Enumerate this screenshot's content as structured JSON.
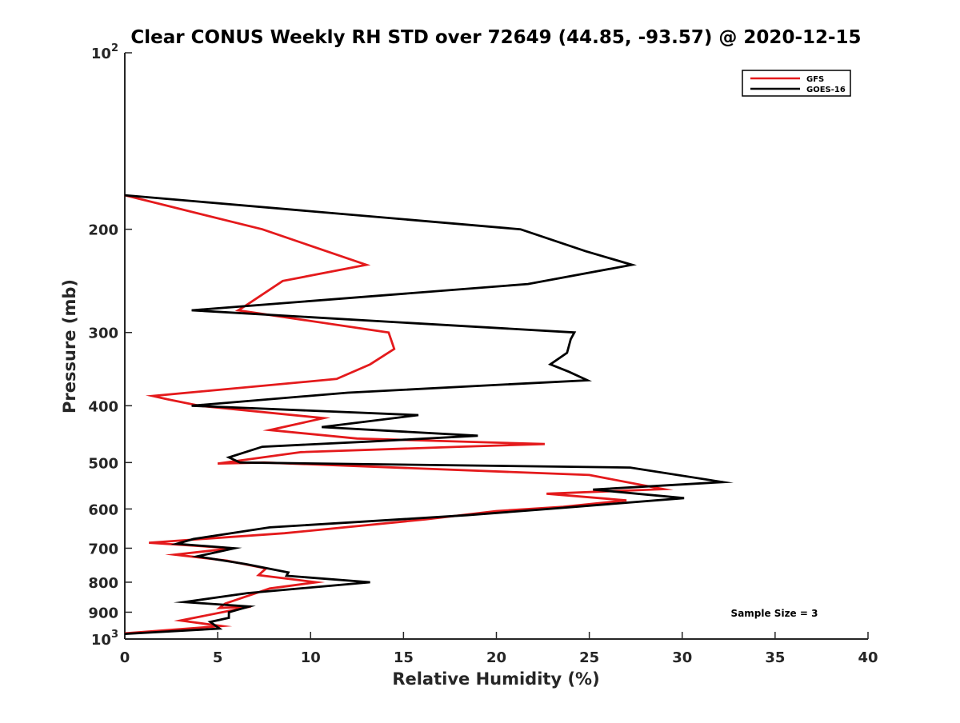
{
  "chart_data": {
    "type": "line",
    "title": "Clear CONUS Weekly RH STD over 72649 (44.85, -93.57) @ 2020-12-15",
    "xlabel": "Relative Humidity (%)",
    "ylabel": "Pressure (mb)",
    "xlim": [
      0,
      40
    ],
    "ylim": [
      100,
      1000
    ],
    "y_scale": "log",
    "y_reversed": true,
    "x_ticks": [
      0,
      5,
      10,
      15,
      20,
      25,
      30,
      35,
      40
    ],
    "x_tick_labels": [
      "0",
      "5",
      "10",
      "15",
      "20",
      "25",
      "30",
      "35",
      "40"
    ],
    "y_ticks": [
      100,
      200,
      300,
      400,
      500,
      600,
      700,
      800,
      900,
      1000
    ],
    "y_tick_labels": [
      {
        "base": "10",
        "exp": "2"
      },
      {
        "base": "200",
        "exp": ""
      },
      {
        "base": "300",
        "exp": ""
      },
      {
        "base": "400",
        "exp": ""
      },
      {
        "base": "500",
        "exp": ""
      },
      {
        "base": "600",
        "exp": ""
      },
      {
        "base": "700",
        "exp": ""
      },
      {
        "base": "800",
        "exp": ""
      },
      {
        "base": "900",
        "exp": ""
      },
      {
        "base": "10",
        "exp": "3"
      }
    ],
    "grid": false,
    "legend_position": "top-right",
    "annotation": "Sample Size = 3",
    "series": [
      {
        "name": "GFS",
        "color": "#e41a1c",
        "x": [
          0,
          7.4,
          13,
          8.5,
          6.5,
          6.1,
          14.2,
          14.5,
          13.2,
          11.4,
          1.5,
          2.3,
          4,
          10.7,
          7.8,
          12.5,
          22.6,
          18,
          9.5,
          5,
          7.5,
          25,
          29,
          22.7,
          27,
          23.6,
          20,
          16.2,
          8.6,
          1.3,
          5.8,
          2.7,
          5.5,
          7.6,
          7.2,
          10.3,
          7.8,
          5.4,
          5.1,
          6.8,
          3,
          5.2,
          0
        ],
        "y": [
          175,
          200,
          230,
          245,
          270,
          275,
          300,
          320,
          340,
          360,
          385,
          390,
          400,
          420,
          440,
          455,
          465,
          470,
          480,
          502,
          500,
          525,
          555,
          565,
          580,
          595,
          605,
          625,
          660,
          685,
          700,
          718,
          735,
          758,
          778,
          800,
          820,
          870,
          885,
          880,
          930,
          950,
          978
        ]
      },
      {
        "name": "GOES-16",
        "color": "#000000",
        "x": [
          0,
          21.3,
          24.8,
          27.3,
          21.7,
          3.6,
          24.2,
          24,
          23.8,
          22.9,
          23.9,
          24.9,
          19,
          12,
          3.6,
          15.8,
          10.6,
          19,
          13.4,
          7.4,
          5.6,
          6.2,
          27.2,
          32.2,
          25.2,
          30.1,
          22.8,
          18.4,
          7.8,
          3.7,
          2.8,
          5.9,
          3.9,
          6.5,
          8.8,
          8.7,
          13.2,
          6.6,
          3.2,
          6.7,
          5.6,
          5.6,
          4.6,
          5.1,
          0
        ],
        "y": [
          175,
          200,
          218,
          230,
          248,
          275,
          300,
          308,
          325,
          340,
          350,
          362,
          370,
          380,
          400,
          415,
          435,
          450,
          460,
          470,
          490,
          500,
          510,
          540,
          556,
          575,
          600,
          615,
          645,
          675,
          688,
          700,
          723,
          745,
          770,
          780,
          800,
          835,
          865,
          880,
          900,
          920,
          935,
          960,
          980
        ]
      }
    ]
  }
}
